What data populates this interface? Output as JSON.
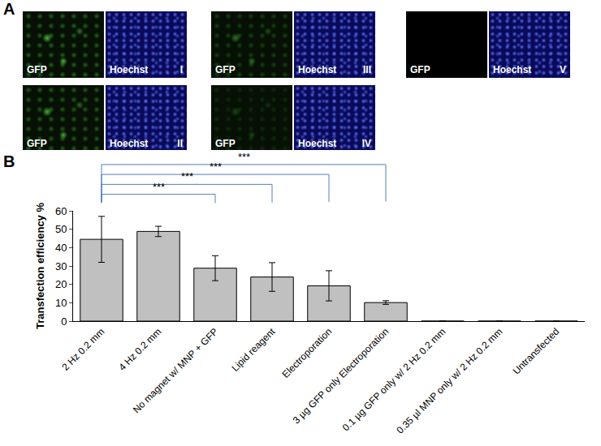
{
  "chart_data": {
    "type": "bar",
    "categories": [
      "2 Hz 0.2 mm",
      "4 Hz 0.2 mm",
      "No magnet w/ MNP + GFP",
      "Lipid reagent",
      "Electroporation",
      "3 µg GFP only Electroporation",
      "0.1 µg GFP only w/ 2 Hz 0.2 mm",
      "0.35 µl MNP only w/ 2 Hz 0.2 mm",
      "Untransfected"
    ],
    "values": [
      44.5,
      48.8,
      28.8,
      24.0,
      19.2,
      10.1,
      0,
      0,
      0
    ],
    "errors": [
      12.5,
      2.8,
      6.8,
      7.8,
      8.2,
      1.0,
      null,
      null,
      null
    ],
    "color": "#c0c0c0",
    "y_label": "Transfection efficiency %",
    "ylim": [
      0,
      60
    ],
    "yticks": [
      0,
      10,
      20,
      30,
      40,
      50,
      60
    ],
    "grid": false,
    "annotations": [
      {
        "from": "2 Hz 0.2 mm",
        "to": "No magnet w/ MNP + GFP",
        "text": "***"
      },
      {
        "from": "2 Hz 0.2 mm",
        "to": "Lipid reagent",
        "text": "***"
      },
      {
        "from": "2 Hz 0.2 mm",
        "to": "Electroporation",
        "text": "***"
      },
      {
        "from": "2 Hz 0.2 mm",
        "to": "3 µg GFP only Electroporation",
        "text": "***"
      }
    ]
  },
  "figure": {
    "panel_labels": [
      "A",
      "B"
    ],
    "images": [
      {
        "channels": [
          "GFP",
          "Hoechst"
        ],
        "label": "I"
      },
      {
        "channels": [
          "GFP",
          "Hoechst"
        ],
        "label": "II"
      },
      {
        "channels": [
          "GFP",
          "Hoechst"
        ],
        "label": "III"
      },
      {
        "channels": [
          "GFP",
          "Hoechst"
        ],
        "label": "IV"
      },
      {
        "channels": [
          "GFP",
          "Hoechst"
        ],
        "label": "V"
      }
    ]
  }
}
